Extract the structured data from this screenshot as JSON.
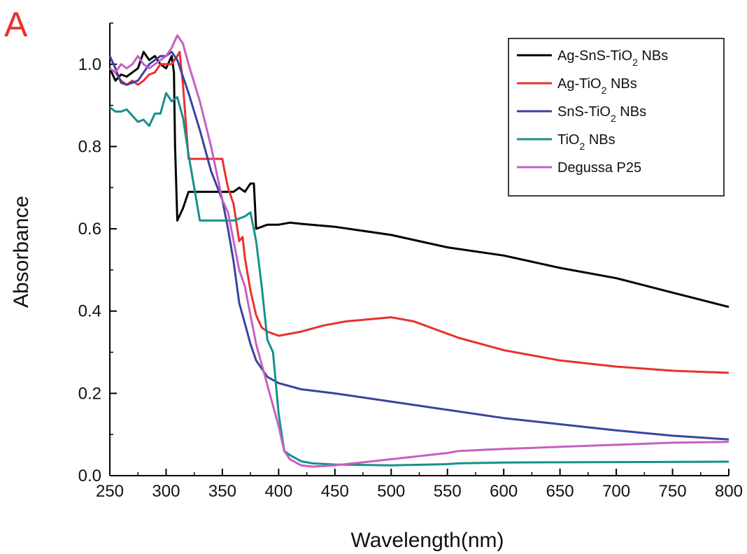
{
  "panel_label": "A",
  "chart_data": {
    "type": "line",
    "xlabel": "Wavelength(nm)",
    "ylabel": "Absorbance",
    "xlim": [
      250,
      800
    ],
    "ylim": [
      0.0,
      1.1
    ],
    "xticks": [
      250,
      300,
      350,
      400,
      450,
      500,
      550,
      600,
      650,
      700,
      750,
      800
    ],
    "yticks": [
      "0.0",
      "0.2",
      "0.4",
      "0.6",
      "0.8",
      "1.0"
    ],
    "grid": false,
    "legend_position": "top-right",
    "series": [
      {
        "name": "Ag-SnS-TiO2 NBs",
        "legend_parts": {
          "pre": "Ag-SnS-TiO",
          "sub": "2",
          "post": " NBs"
        },
        "color": "#000000",
        "points": [
          [
            250,
            0.99
          ],
          [
            255,
            0.96
          ],
          [
            260,
            0.975
          ],
          [
            265,
            0.97
          ],
          [
            270,
            0.98
          ],
          [
            275,
            0.99
          ],
          [
            280,
            1.03
          ],
          [
            285,
            1.01
          ],
          [
            290,
            1.02
          ],
          [
            295,
            1.0
          ],
          [
            300,
            0.99
          ],
          [
            305,
            1.02
          ],
          [
            307,
            0.98
          ],
          [
            308,
            0.8
          ],
          [
            310,
            0.62
          ],
          [
            315,
            0.65
          ],
          [
            320,
            0.69
          ],
          [
            330,
            0.69
          ],
          [
            340,
            0.69
          ],
          [
            350,
            0.69
          ],
          [
            360,
            0.69
          ],
          [
            365,
            0.7
          ],
          [
            370,
            0.69
          ],
          [
            375,
            0.71
          ],
          [
            378,
            0.71
          ],
          [
            380,
            0.6
          ],
          [
            385,
            0.605
          ],
          [
            390,
            0.61
          ],
          [
            400,
            0.61
          ],
          [
            410,
            0.615
          ],
          [
            420,
            0.612
          ],
          [
            450,
            0.605
          ],
          [
            500,
            0.585
          ],
          [
            550,
            0.555
          ],
          [
            600,
            0.535
          ],
          [
            650,
            0.505
          ],
          [
            700,
            0.48
          ],
          [
            750,
            0.445
          ],
          [
            800,
            0.41
          ]
        ]
      },
      {
        "name": "Ag-TiO2 NBs",
        "legend_parts": {
          "pre": "Ag-TiO",
          "sub": "2",
          "post": " NBs"
        },
        "color": "#e8312e",
        "points": [
          [
            250,
            0.99
          ],
          [
            255,
            0.98
          ],
          [
            260,
            0.96
          ],
          [
            265,
            0.95
          ],
          [
            270,
            0.96
          ],
          [
            275,
            0.95
          ],
          [
            280,
            0.96
          ],
          [
            285,
            0.975
          ],
          [
            290,
            0.98
          ],
          [
            295,
            1.0
          ],
          [
            300,
            1.0
          ],
          [
            305,
            1.0
          ],
          [
            310,
            1.02
          ],
          [
            312,
            1.03
          ],
          [
            315,
            0.95
          ],
          [
            320,
            0.77
          ],
          [
            330,
            0.77
          ],
          [
            340,
            0.77
          ],
          [
            350,
            0.77
          ],
          [
            352,
            0.74
          ],
          [
            355,
            0.7
          ],
          [
            360,
            0.66
          ],
          [
            365,
            0.57
          ],
          [
            368,
            0.58
          ],
          [
            370,
            0.53
          ],
          [
            375,
            0.45
          ],
          [
            380,
            0.39
          ],
          [
            385,
            0.36
          ],
          [
            390,
            0.35
          ],
          [
            400,
            0.34
          ],
          [
            410,
            0.345
          ],
          [
            420,
            0.35
          ],
          [
            440,
            0.365
          ],
          [
            460,
            0.375
          ],
          [
            480,
            0.38
          ],
          [
            500,
            0.385
          ],
          [
            520,
            0.375
          ],
          [
            540,
            0.355
          ],
          [
            560,
            0.335
          ],
          [
            600,
            0.305
          ],
          [
            650,
            0.28
          ],
          [
            700,
            0.265
          ],
          [
            750,
            0.255
          ],
          [
            800,
            0.25
          ]
        ]
      },
      {
        "name": "SnS-TiO2 NBs",
        "legend_parts": {
          "pre": "SnS-TiO",
          "sub": "2",
          "post": " NBs"
        },
        "color": "#3a43a0",
        "points": [
          [
            250,
            1.02
          ],
          [
            255,
            0.99
          ],
          [
            260,
            0.955
          ],
          [
            265,
            0.95
          ],
          [
            270,
            0.955
          ],
          [
            275,
            0.96
          ],
          [
            280,
            0.98
          ],
          [
            285,
            1.0
          ],
          [
            290,
            1.01
          ],
          [
            295,
            1.02
          ],
          [
            300,
            1.02
          ],
          [
            305,
            1.03
          ],
          [
            310,
            1.01
          ],
          [
            320,
            0.93
          ],
          [
            330,
            0.84
          ],
          [
            340,
            0.74
          ],
          [
            350,
            0.67
          ],
          [
            355,
            0.6
          ],
          [
            360,
            0.52
          ],
          [
            365,
            0.42
          ],
          [
            370,
            0.37
          ],
          [
            375,
            0.32
          ],
          [
            380,
            0.28
          ],
          [
            390,
            0.24
          ],
          [
            400,
            0.225
          ],
          [
            420,
            0.21
          ],
          [
            450,
            0.2
          ],
          [
            500,
            0.18
          ],
          [
            550,
            0.16
          ],
          [
            600,
            0.14
          ],
          [
            650,
            0.125
          ],
          [
            700,
            0.11
          ],
          [
            750,
            0.097
          ],
          [
            800,
            0.088
          ]
        ]
      },
      {
        "name": "TiO2 NBs",
        "legend_parts": {
          "pre": "TiO",
          "sub": "2",
          "post": " NBs"
        },
        "color": "#14918c",
        "points": [
          [
            250,
            0.895
          ],
          [
            255,
            0.885
          ],
          [
            260,
            0.885
          ],
          [
            265,
            0.89
          ],
          [
            270,
            0.875
          ],
          [
            275,
            0.86
          ],
          [
            280,
            0.865
          ],
          [
            285,
            0.85
          ],
          [
            290,
            0.88
          ],
          [
            295,
            0.88
          ],
          [
            300,
            0.93
          ],
          [
            305,
            0.91
          ],
          [
            310,
            0.92
          ],
          [
            315,
            0.87
          ],
          [
            320,
            0.78
          ],
          [
            325,
            0.7
          ],
          [
            330,
            0.62
          ],
          [
            340,
            0.62
          ],
          [
            350,
            0.62
          ],
          [
            360,
            0.62
          ],
          [
            365,
            0.625
          ],
          [
            370,
            0.63
          ],
          [
            375,
            0.64
          ],
          [
            380,
            0.57
          ],
          [
            385,
            0.46
          ],
          [
            390,
            0.33
          ],
          [
            395,
            0.3
          ],
          [
            400,
            0.15
          ],
          [
            405,
            0.06
          ],
          [
            410,
            0.05
          ],
          [
            420,
            0.035
          ],
          [
            430,
            0.03
          ],
          [
            450,
            0.027
          ],
          [
            500,
            0.025
          ],
          [
            550,
            0.028
          ],
          [
            560,
            0.03
          ],
          [
            600,
            0.032
          ],
          [
            700,
            0.033
          ],
          [
            800,
            0.034
          ]
        ]
      },
      {
        "name": "Degussa P25",
        "legend_parts": {
          "pre": "Degussa P25",
          "sub": "",
          "post": ""
        },
        "color": "#c75fbf",
        "points": [
          [
            250,
            0.99
          ],
          [
            255,
            0.98
          ],
          [
            260,
            1.0
          ],
          [
            265,
            0.99
          ],
          [
            270,
            1.0
          ],
          [
            275,
            1.02
          ],
          [
            280,
            1.0
          ],
          [
            285,
            0.99
          ],
          [
            290,
            1.0
          ],
          [
            295,
            1.01
          ],
          [
            300,
            1.02
          ],
          [
            305,
            1.04
          ],
          [
            310,
            1.07
          ],
          [
            315,
            1.05
          ],
          [
            320,
            1.0
          ],
          [
            330,
            0.91
          ],
          [
            340,
            0.8
          ],
          [
            350,
            0.67
          ],
          [
            355,
            0.64
          ],
          [
            360,
            0.57
          ],
          [
            365,
            0.5
          ],
          [
            370,
            0.46
          ],
          [
            375,
            0.39
          ],
          [
            380,
            0.32
          ],
          [
            390,
            0.22
          ],
          [
            400,
            0.12
          ],
          [
            405,
            0.06
          ],
          [
            410,
            0.04
          ],
          [
            420,
            0.025
          ],
          [
            430,
            0.022
          ],
          [
            450,
            0.025
          ],
          [
            500,
            0.04
          ],
          [
            550,
            0.055
          ],
          [
            560,
            0.06
          ],
          [
            600,
            0.065
          ],
          [
            650,
            0.07
          ],
          [
            700,
            0.075
          ],
          [
            750,
            0.08
          ],
          [
            800,
            0.082
          ]
        ]
      }
    ]
  }
}
